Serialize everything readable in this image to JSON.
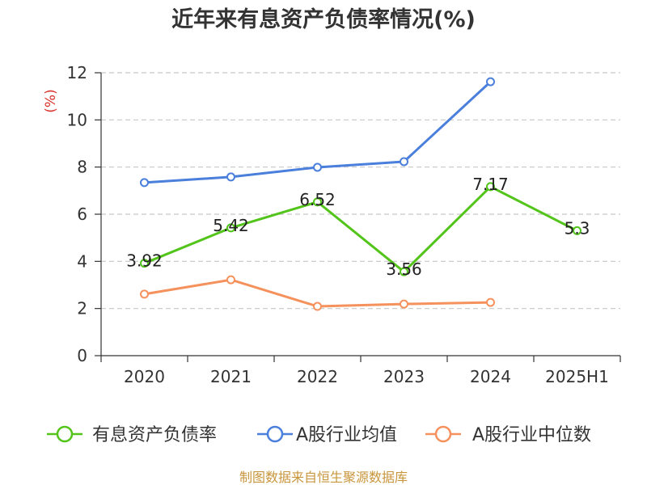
{
  "chart_data": {
    "type": "line",
    "title": "近年来有息资产负债率情况(%)",
    "xlabel": "",
    "ylabel": "(%)",
    "categories": [
      "2020",
      "2021",
      "2022",
      "2023",
      "2024",
      "2025H1"
    ],
    "ylim": [
      0,
      12
    ],
    "yticks": [
      0,
      2,
      4,
      6,
      8,
      10,
      12
    ],
    "grid": true,
    "legend": "bottom",
    "series": [
      {
        "name": "有息资产负债率",
        "color": "#52C41A",
        "values": [
          3.92,
          5.42,
          6.52,
          3.56,
          7.17,
          5.3
        ],
        "data_labels": true
      },
      {
        "name": "A股行业均值",
        "color": "#4A7FDB",
        "values": [
          7.34,
          7.58,
          7.99,
          8.23,
          11.62,
          null
        ],
        "data_labels": false
      },
      {
        "name": "A股行业中位数",
        "color": "#F5915C",
        "values": [
          2.61,
          3.22,
          2.09,
          2.19,
          2.26,
          null
        ],
        "data_labels": false
      }
    ]
  },
  "footer": {
    "source": "制图数据来自恒生聚源数据库"
  },
  "colors": {
    "ylabel": "#D9312B",
    "footer": "#C8963C",
    "axis": "#333333",
    "grid": "#C8C8C8"
  }
}
